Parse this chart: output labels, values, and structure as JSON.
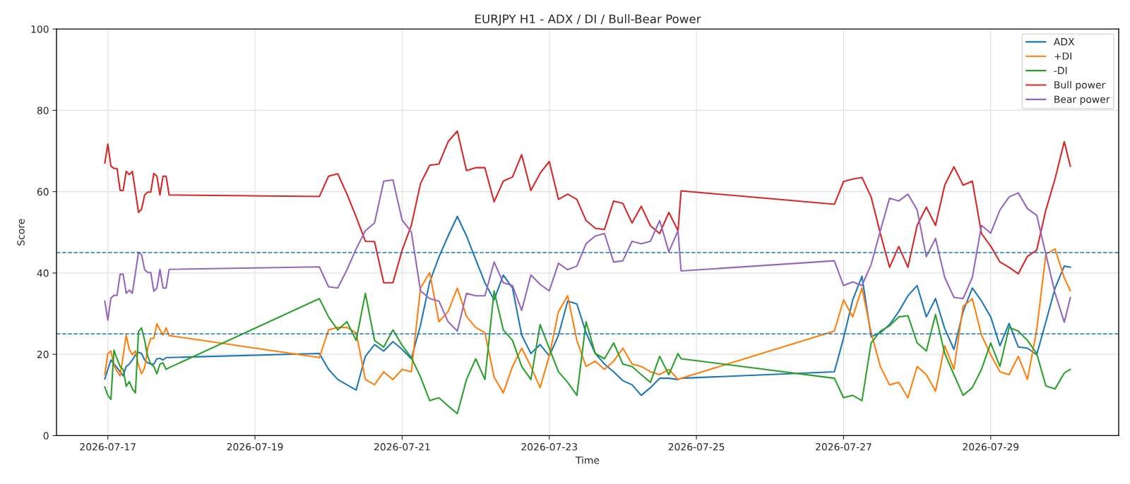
{
  "chart_data": {
    "type": "line",
    "title": "EURJPY H1 - ADX / DI / Bull-Bear Power",
    "xlabel": "Time",
    "ylabel": "Score",
    "x": [
      "2026-07-16T23:00",
      "2026-07-17T00:00",
      "2026-07-17T01:00",
      "2026-07-17T02:00",
      "2026-07-17T03:00",
      "2026-07-17T04:00",
      "2026-07-17T05:00",
      "2026-07-17T06:00",
      "2026-07-17T07:00",
      "2026-07-17T08:00",
      "2026-07-17T09:00",
      "2026-07-17T10:00",
      "2026-07-17T11:00",
      "2026-07-17T12:00",
      "2026-07-17T13:00",
      "2026-07-17T14:00",
      "2026-07-17T15:00",
      "2026-07-17T16:00",
      "2026-07-17T17:00",
      "2026-07-17T18:00",
      "2026-07-17T19:00",
      "2026-07-17T20:00",
      "2026-07-19T21:00",
      "2026-07-20T00:00",
      "2026-07-20T03:00",
      "2026-07-20T06:00",
      "2026-07-20T09:00",
      "2026-07-20T12:00",
      "2026-07-20T15:00",
      "2026-07-20T18:00",
      "2026-07-20T21:00",
      "2026-07-21T00:00",
      "2026-07-21T03:00",
      "2026-07-21T06:00",
      "2026-07-21T09:00",
      "2026-07-21T12:00",
      "2026-07-21T15:00",
      "2026-07-21T18:00",
      "2026-07-21T21:00",
      "2026-07-22T00:00",
      "2026-07-22T03:00",
      "2026-07-22T06:00",
      "2026-07-22T09:00",
      "2026-07-22T12:00",
      "2026-07-22T15:00",
      "2026-07-22T18:00",
      "2026-07-22T21:00",
      "2026-07-23T00:00",
      "2026-07-23T03:00",
      "2026-07-23T06:00",
      "2026-07-23T09:00",
      "2026-07-23T12:00",
      "2026-07-23T15:00",
      "2026-07-23T18:00",
      "2026-07-23T21:00",
      "2026-07-24T00:00",
      "2026-07-24T03:00",
      "2026-07-24T06:00",
      "2026-07-24T09:00",
      "2026-07-24T12:00",
      "2026-07-24T15:00",
      "2026-07-24T18:00",
      "2026-07-24T19:00",
      "2026-07-26T21:00",
      "2026-07-27T00:00",
      "2026-07-27T03:00",
      "2026-07-27T06:00",
      "2026-07-27T09:00",
      "2026-07-27T12:00",
      "2026-07-27T15:00",
      "2026-07-27T18:00",
      "2026-07-27T21:00",
      "2026-07-28T00:00",
      "2026-07-28T03:00",
      "2026-07-28T06:00",
      "2026-07-28T09:00",
      "2026-07-28T12:00",
      "2026-07-28T15:00",
      "2026-07-28T18:00",
      "2026-07-28T21:00",
      "2026-07-29T00:00",
      "2026-07-29T03:00",
      "2026-07-29T06:00",
      "2026-07-29T09:00",
      "2026-07-29T12:00",
      "2026-07-29T15:00",
      "2026-07-29T18:00",
      "2026-07-29T21:00",
      "2026-07-30T00:00",
      "2026-07-30T02:00"
    ],
    "series": [
      {
        "name": "ADX",
        "color": "#1f77b4",
        "values": [
          13.9,
          16.3,
          18.6,
          17.6,
          16.7,
          15.7,
          14.7,
          17.0,
          17.6,
          18.6,
          19.9,
          20.5,
          20.2,
          18.6,
          17.9,
          17.6,
          17.6,
          18.9,
          19.0,
          18.6,
          19.2,
          19.2,
          20.2,
          16.3,
          13.8,
          12.5,
          11.2,
          19.5,
          22.4,
          20.8,
          23.1,
          21.2,
          18.9,
          27.2,
          37.8,
          43.9,
          49.1,
          53.9,
          49.1,
          43.3,
          37.6,
          33.4,
          39.5,
          36.3,
          24.7,
          20.2,
          22.4,
          19.6,
          24.7,
          33.1,
          32.4,
          25.3,
          20.2,
          17.6,
          15.7,
          13.5,
          12.5,
          9.9,
          11.8,
          14.1,
          14.1,
          13.8,
          14.1,
          15.7,
          24.0,
          33.4,
          39.2,
          24.3,
          25.3,
          27.3,
          30.5,
          34.4,
          36.9,
          29.2,
          33.7,
          26.3,
          21.2,
          30.5,
          36.3,
          33.1,
          29.2,
          22.1,
          27.6,
          21.8,
          21.5,
          19.9,
          28.0,
          36.3,
          41.7,
          41.4
        ]
      },
      {
        "name": "+DI",
        "color": "#ff7f0e",
        "values": [
          15.0,
          20.2,
          20.8,
          17.3,
          15.8,
          14.7,
          19.6,
          24.7,
          21.2,
          19.9,
          20.8,
          17.3,
          15.2,
          16.7,
          21.5,
          23.9,
          23.9,
          27.5,
          26.0,
          24.7,
          26.5,
          24.6,
          19.2,
          26.0,
          26.6,
          26.6,
          25.3,
          13.8,
          12.5,
          15.7,
          13.8,
          16.3,
          15.7,
          36.3,
          40.1,
          28.0,
          30.5,
          36.3,
          29.3,
          26.6,
          25.3,
          14.4,
          10.5,
          17.0,
          21.5,
          17.0,
          11.8,
          19.6,
          30.5,
          34.4,
          23.4,
          17.0,
          18.3,
          16.3,
          18.3,
          21.5,
          17.6,
          17.0,
          15.7,
          15.0,
          16.3,
          13.8,
          14.1,
          25.7,
          33.4,
          29.2,
          36.3,
          25.3,
          17.0,
          12.5,
          13.1,
          9.3,
          17.0,
          15.0,
          10.9,
          22.1,
          16.3,
          31.8,
          33.7,
          24.7,
          19.9,
          15.7,
          15.0,
          19.5,
          13.8,
          26.0,
          44.6,
          45.9,
          38.8,
          35.6
        ]
      },
      {
        "name": "-DI",
        "color": "#2ca02c",
        "values": [
          12.0,
          9.9,
          8.9,
          21.0,
          18.9,
          17.0,
          16.3,
          12.1,
          13.3,
          11.5,
          10.5,
          25.6,
          26.5,
          23.4,
          19.5,
          17.6,
          17.0,
          15.2,
          17.6,
          17.9,
          16.3,
          16.7,
          33.7,
          29.2,
          26.0,
          28.0,
          23.4,
          35.0,
          23.4,
          21.8,
          26.0,
          22.2,
          19.2,
          14.4,
          8.6,
          9.3,
          7.3,
          5.4,
          13.8,
          18.9,
          13.8,
          35.6,
          26.0,
          23.4,
          17.0,
          13.8,
          27.3,
          21.5,
          15.7,
          13.1,
          9.9,
          28.0,
          20.2,
          18.9,
          22.8,
          17.6,
          17.0,
          15.0,
          13.1,
          19.5,
          15.0,
          20.2,
          18.9,
          14.1,
          9.3,
          9.9,
          8.6,
          22.8,
          25.7,
          27.0,
          29.2,
          29.5,
          22.8,
          20.8,
          29.8,
          20.2,
          15.0,
          9.9,
          11.8,
          16.3,
          22.8,
          17.0,
          26.6,
          25.7,
          23.4,
          20.2,
          12.2,
          11.5,
          15.4,
          16.3
        ]
      },
      {
        "name": "Bull power",
        "color": "#d62728",
        "values": [
          67.0,
          71.7,
          66.3,
          65.7,
          65.7,
          60.3,
          60.3,
          65.0,
          64.2,
          65.0,
          60.0,
          54.9,
          55.7,
          59.2,
          59.9,
          59.9,
          64.5,
          63.8,
          59.2,
          63.8,
          63.8,
          59.2,
          58.8,
          63.8,
          64.4,
          59.4,
          53.8,
          47.8,
          47.7,
          37.6,
          37.6,
          45.6,
          51.7,
          62.0,
          66.5,
          66.8,
          72.3,
          74.9,
          65.2,
          65.9,
          65.9,
          57.5,
          62.6,
          63.6,
          69.1,
          60.3,
          64.5,
          67.4,
          58.1,
          59.4,
          58.1,
          52.9,
          51.0,
          50.7,
          57.7,
          57.1,
          52.3,
          56.4,
          51.6,
          49.7,
          54.9,
          50.4,
          60.2,
          56.9,
          62.5,
          63.1,
          63.5,
          58.7,
          49.7,
          41.4,
          46.5,
          41.4,
          51.7,
          56.2,
          51.7,
          61.6,
          66.1,
          61.6,
          62.6,
          49.7,
          46.6,
          42.7,
          41.4,
          39.8,
          44.1,
          45.6,
          55.5,
          63.2,
          72.3,
          66.2
        ]
      },
      {
        "name": "Bear power",
        "color": "#9467bd",
        "values": [
          33.1,
          28.4,
          33.8,
          34.5,
          34.5,
          39.7,
          39.7,
          35.0,
          35.8,
          35.0,
          40.0,
          45.1,
          44.5,
          40.8,
          40.1,
          40.1,
          35.5,
          36.3,
          40.9,
          36.3,
          36.3,
          40.9,
          41.5,
          36.6,
          36.3,
          40.8,
          45.9,
          50.4,
          52.3,
          62.6,
          62.9,
          53.0,
          50.1,
          35.6,
          33.7,
          33.1,
          28.0,
          25.7,
          35.0,
          34.4,
          34.4,
          42.7,
          37.6,
          36.9,
          30.8,
          39.5,
          37.2,
          35.6,
          42.4,
          40.8,
          41.7,
          47.2,
          49.1,
          49.7,
          42.7,
          43.0,
          47.8,
          47.2,
          47.8,
          52.9,
          45.2,
          50.4,
          40.5,
          43.0,
          36.9,
          37.8,
          36.9,
          42.1,
          50.4,
          58.4,
          57.7,
          59.4,
          55.5,
          44.0,
          48.5,
          38.9,
          34.0,
          33.7,
          38.9,
          51.7,
          49.8,
          55.5,
          58.7,
          59.7,
          55.8,
          54.2,
          44.6,
          35.0,
          27.9,
          34.0
        ]
      }
    ],
    "xlim": [
      "2026-07-16T07:15",
      "2026-07-30T17:45"
    ],
    "xticks": [
      "2026-07-17",
      "2026-07-19",
      "2026-07-21",
      "2026-07-23",
      "2026-07-25",
      "2026-07-27",
      "2026-07-29"
    ],
    "ylim": [
      0,
      100
    ],
    "yticks": [
      0,
      20,
      40,
      60,
      80,
      100
    ],
    "ref_lines": [
      {
        "axis": "y",
        "value": 45,
        "color": "#1f77b4",
        "line_style": "dashed"
      },
      {
        "axis": "y",
        "value": 25,
        "color": "#1f77b4",
        "line_style": "dashed"
      }
    ],
    "grid": true,
    "legend": "top right",
    "marker": "none",
    "line_style": "solid"
  }
}
